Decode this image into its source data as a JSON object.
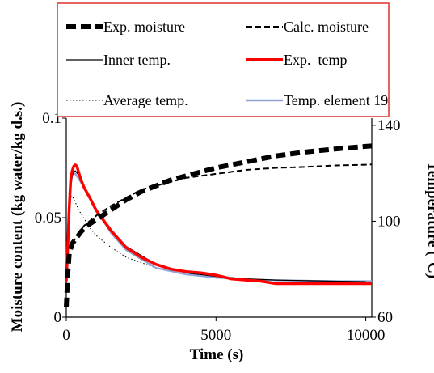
{
  "chart_data": {
    "type": "line",
    "xlabel": "Time (s)",
    "ylabel_left": "Moisture content (kg water/kg d.s.)",
    "ylabel_right": "Temperature (°C)",
    "xlim": [
      0,
      10200
    ],
    "ylim_left": [
      0,
      0.1
    ],
    "ylim_right": [
      60,
      143
    ],
    "x_ticks": [
      0,
      5000,
      10000
    ],
    "x_tick_labels": [
      "0",
      "5000",
      "10000"
    ],
    "y_left_ticks": [
      0,
      0.05,
      0.1
    ],
    "y_left_tick_labels": [
      "0",
      "0.05",
      "0.1"
    ],
    "y_right_ticks": [
      60,
      100,
      140
    ],
    "y_right_tick_labels": [
      "60",
      "100",
      "140"
    ],
    "grid": false,
    "legend_position": "top",
    "series": [
      {
        "name": "Exp. moisture",
        "axis": "left",
        "color": "#000000",
        "style": "thick-dash",
        "x": [
          0,
          50,
          100,
          200,
          300,
          500,
          700,
          1000,
          1500,
          2000,
          2500,
          3000,
          3500,
          4000,
          5000,
          6000,
          7000,
          8000,
          9000,
          10000,
          10200
        ],
        "y": [
          0.005,
          0.022,
          0.032,
          0.037,
          0.039,
          0.043,
          0.046,
          0.049,
          0.054,
          0.059,
          0.063,
          0.066,
          0.069,
          0.071,
          0.075,
          0.078,
          0.081,
          0.083,
          0.0845,
          0.0858,
          0.086
        ]
      },
      {
        "name": "Calc. moisture",
        "axis": "left",
        "color": "#000000",
        "style": "dash",
        "x": [
          200,
          400,
          600,
          1000,
          1500,
          2000,
          2500,
          3000,
          3500,
          4000,
          5000,
          6000,
          7000,
          8000,
          9000,
          10000,
          10200
        ],
        "y": [
          0.037,
          0.042,
          0.046,
          0.051,
          0.056,
          0.06,
          0.064,
          0.066,
          0.068,
          0.07,
          0.072,
          0.074,
          0.075,
          0.0755,
          0.0762,
          0.0766,
          0.0767
        ]
      },
      {
        "name": "Inner temp.",
        "axis": "right",
        "color": "#000000",
        "style": "solid",
        "x": [
          0,
          50,
          100,
          150,
          200,
          250,
          300,
          400,
          500,
          700,
          1000,
          1500,
          2000,
          3000,
          4000,
          5000,
          6000,
          7000,
          8000,
          9000,
          10000
        ],
        "y": [
          75,
          90,
          104,
          114,
          119,
          120.5,
          121,
          119.5,
          117,
          112,
          105,
          96,
          89.5,
          82,
          78.5,
          77,
          76,
          75.5,
          75.2,
          75,
          74.8
        ]
      },
      {
        "name": "Exp.  temp",
        "axis": "right",
        "color": "#ff0000",
        "style": "solid-thick",
        "x": [
          0,
          50,
          100,
          150,
          200,
          250,
          300,
          350,
          400,
          500,
          600,
          800,
          1000,
          1500,
          2000,
          2500,
          3000,
          3500,
          4000,
          4500,
          5000,
          5500,
          6000,
          6500,
          7000,
          8000,
          9000,
          10000,
          10200
        ],
        "y": [
          75,
          90,
          106,
          118,
          121,
          123,
          123.5,
          123,
          121,
          117,
          114,
          109.5,
          104.5,
          96,
          89,
          85,
          82,
          80,
          79,
          78.5,
          77.5,
          76,
          75.5,
          75,
          74,
          74,
          74,
          74,
          74
        ]
      },
      {
        "name": "Average temp.",
        "axis": "right",
        "color": "#000000",
        "style": "dotted",
        "x": [
          0,
          50,
          100,
          150,
          200,
          300,
          400,
          600,
          800,
          1000,
          1500,
          2000,
          3000,
          4000,
          5000,
          6000,
          7000,
          8000,
          9000,
          10000,
          10200
        ],
        "y": [
          75,
          94,
          106,
          110,
          110.5,
          108,
          105,
          101,
          97,
          94,
          89,
          85,
          80.5,
          78,
          77,
          76,
          75.5,
          75.2,
          75,
          74.8,
          74.8
        ]
      },
      {
        "name": "Temp. element 19",
        "axis": "right",
        "color": "#8fa3d6",
        "style": "solid",
        "x": [
          0,
          50,
          100,
          150,
          200,
          250,
          300,
          400,
          500,
          700,
          1000,
          1500,
          2000,
          3000,
          4000,
          5000,
          6000,
          7000,
          8000,
          9000,
          10000,
          10200
        ],
        "y": [
          75,
          92,
          108,
          116,
          119.5,
          120,
          119.8,
          118,
          116,
          111.5,
          105,
          95,
          88,
          80.5,
          77.8,
          76.5,
          75.8,
          75.4,
          75.2,
          75,
          75,
          75
        ]
      }
    ]
  }
}
